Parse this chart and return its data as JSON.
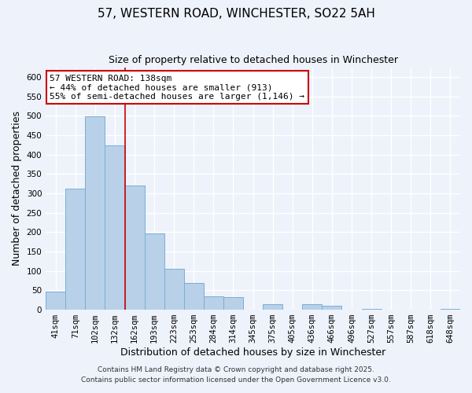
{
  "title": "57, WESTERN ROAD, WINCHESTER, SO22 5AH",
  "subtitle": "Size of property relative to detached houses in Winchester",
  "xlabel": "Distribution of detached houses by size in Winchester",
  "ylabel": "Number of detached properties",
  "bar_labels": [
    "41sqm",
    "71sqm",
    "102sqm",
    "132sqm",
    "162sqm",
    "193sqm",
    "223sqm",
    "253sqm",
    "284sqm",
    "314sqm",
    "345sqm",
    "375sqm",
    "405sqm",
    "436sqm",
    "466sqm",
    "496sqm",
    "527sqm",
    "557sqm",
    "587sqm",
    "618sqm",
    "648sqm"
  ],
  "bar_values": [
    47,
    313,
    498,
    424,
    320,
    196,
    106,
    70,
    35,
    32,
    0,
    14,
    0,
    14,
    10,
    0,
    3,
    0,
    0,
    0,
    2
  ],
  "bar_color": "#b8d0e8",
  "bar_edge_color": "#7aafd4",
  "vline_x_index": 3,
  "vline_color": "#cc0000",
  "ylim": [
    0,
    625
  ],
  "yticks": [
    0,
    50,
    100,
    150,
    200,
    250,
    300,
    350,
    400,
    450,
    500,
    550,
    600
  ],
  "annotation_title": "57 WESTERN ROAD: 138sqm",
  "annotation_line1": "← 44% of detached houses are smaller (913)",
  "annotation_line2": "55% of semi-detached houses are larger (1,146) →",
  "annotation_box_color": "#ffffff",
  "annotation_box_edge": "#cc0000",
  "footer1": "Contains HM Land Registry data © Crown copyright and database right 2025.",
  "footer2": "Contains public sector information licensed under the Open Government Licence v3.0.",
  "background_color": "#eef2fb",
  "grid_color": "#ffffff",
  "title_fontsize": 11,
  "subtitle_fontsize": 9,
  "axis_label_fontsize": 9,
  "tick_fontsize": 7.5,
  "annotation_fontsize": 8,
  "footer_fontsize": 6.5
}
